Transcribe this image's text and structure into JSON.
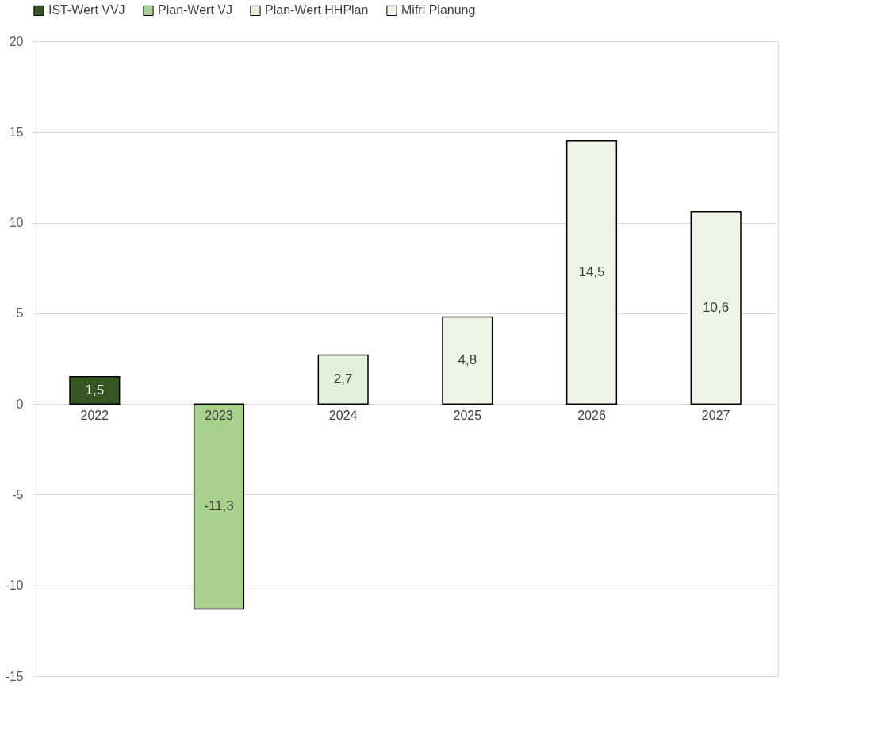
{
  "chart_data": {
    "type": "bar",
    "categories": [
      "2022",
      "2023",
      "2024",
      "2025",
      "2026",
      "2027"
    ],
    "series": [
      {
        "name": "IST-Wert VVJ",
        "color": "#375623",
        "values": [
          1.5,
          null,
          null,
          null,
          null,
          null
        ],
        "value_labels": [
          "1,5",
          null,
          null,
          null,
          null,
          null
        ]
      },
      {
        "name": "Plan-Wert VJ",
        "color": "#a9d18e",
        "values": [
          null,
          -11.3,
          null,
          null,
          null,
          null
        ],
        "value_labels": [
          null,
          "-11,3",
          null,
          null,
          null,
          null
        ]
      },
      {
        "name": "Plan-Wert HHPlan",
        "color": "#e2efda",
        "values": [
          null,
          null,
          2.7,
          null,
          null,
          null
        ],
        "value_labels": [
          null,
          null,
          "2,7",
          null,
          null,
          null
        ]
      },
      {
        "name": "Mifri Planung",
        "color": "#eef5e8",
        "values": [
          null,
          null,
          null,
          4.8,
          14.5,
          10.6
        ],
        "value_labels": [
          null,
          null,
          null,
          "4,8",
          "14,5",
          "10,6"
        ]
      }
    ],
    "ylim": [
      -15,
      20
    ],
    "yticks": [
      -15,
      -10,
      -5,
      0,
      5,
      10,
      15,
      20
    ],
    "grid": "y",
    "legend": "top"
  }
}
